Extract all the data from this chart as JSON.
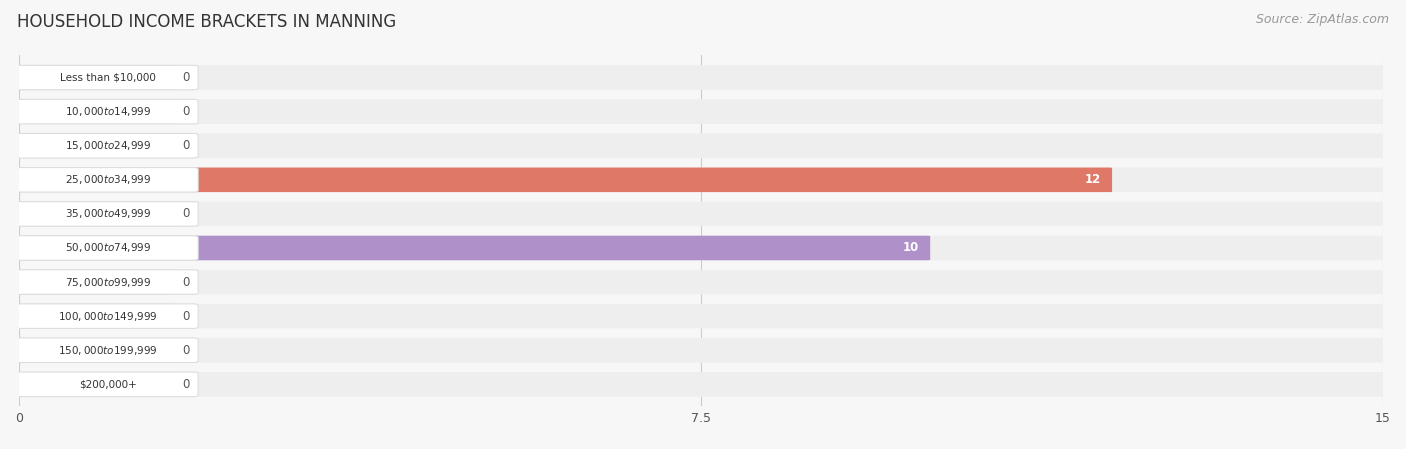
{
  "title": "HOUSEHOLD INCOME BRACKETS IN MANNING",
  "source": "Source: ZipAtlas.com",
  "categories": [
    "Less than $10,000",
    "$10,000 to $14,999",
    "$15,000 to $24,999",
    "$25,000 to $34,999",
    "$35,000 to $49,999",
    "$50,000 to $74,999",
    "$75,000 to $99,999",
    "$100,000 to $149,999",
    "$150,000 to $199,999",
    "$200,000+"
  ],
  "values": [
    0,
    0,
    0,
    12,
    0,
    10,
    0,
    0,
    0,
    0
  ],
  "bar_colors": [
    "#a8a8d8",
    "#f0a0b0",
    "#e8c870",
    "#e07868",
    "#90b8e0",
    "#b090c8",
    "#68c8c0",
    "#b0b8e8",
    "#f090a8",
    "#f8c898"
  ],
  "label_bg_colors": [
    "#e8e8f8",
    "#fce0e8",
    "#faeac8",
    "#fce0d8",
    "#d8e8f8",
    "#e8d8f0",
    "#c8ece8",
    "#d8dff8",
    "#fcd8e4",
    "#fdecd8"
  ],
  "xlim": [
    0,
    15
  ],
  "xticks": [
    0,
    7.5,
    15
  ],
  "background_color": "#f7f7f7",
  "row_bg_color": "#eeeeee",
  "title_fontsize": 12,
  "source_fontsize": 9
}
